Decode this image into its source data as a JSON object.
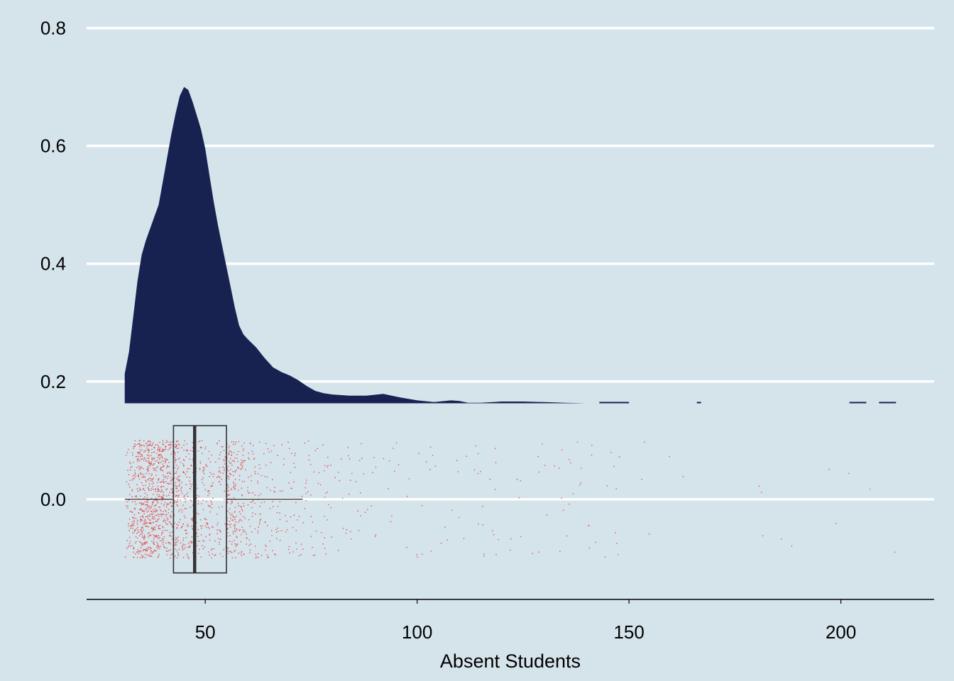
{
  "chart_data": {
    "type": "area",
    "title": "",
    "xlabel": "Absent Students",
    "ylabel": "",
    "xlim": [
      22,
      222
    ],
    "ylim": [
      -0.17,
      0.82
    ],
    "x_ticks": [
      {
        "value": 50,
        "label": "50"
      },
      {
        "value": 100,
        "label": "100"
      },
      {
        "value": 150,
        "label": "150"
      },
      {
        "value": 200,
        "label": "200"
      }
    ],
    "y_ticks": [
      {
        "value": 0.0,
        "label": "0.0"
      },
      {
        "value": 0.2,
        "label": "0.2"
      },
      {
        "value": 0.4,
        "label": "0.4"
      },
      {
        "value": 0.6,
        "label": "0.6"
      },
      {
        "value": 0.8,
        "label": "0.8"
      }
    ],
    "grid": "horizontal major",
    "colors": {
      "background": "#d5e4eb",
      "grid": "#ffffff",
      "density_fill": "#172251",
      "points": "#e04040",
      "box": "#333333"
    },
    "density": {
      "baseline": 0.163,
      "x": [
        31,
        32,
        33,
        34,
        35,
        36,
        37,
        38,
        39,
        40,
        41,
        42,
        43,
        44,
        45,
        46,
        47,
        48,
        49,
        50,
        51,
        52,
        53,
        54,
        55,
        56,
        57,
        58,
        59,
        60,
        62,
        64,
        66,
        68,
        70,
        72,
        74,
        76,
        78,
        80,
        84,
        88,
        92,
        96,
        100,
        104,
        108,
        110,
        112,
        115,
        120,
        125,
        130,
        135,
        140,
        142
      ],
      "y": [
        0.213,
        0.25,
        0.31,
        0.37,
        0.415,
        0.44,
        0.46,
        0.48,
        0.5,
        0.54,
        0.58,
        0.62,
        0.655,
        0.685,
        0.7,
        0.695,
        0.675,
        0.652,
        0.628,
        0.595,
        0.55,
        0.505,
        0.465,
        0.43,
        0.395,
        0.36,
        0.325,
        0.295,
        0.28,
        0.272,
        0.258,
        0.24,
        0.224,
        0.216,
        0.21,
        0.202,
        0.192,
        0.184,
        0.18,
        0.178,
        0.176,
        0.176,
        0.179,
        0.173,
        0.168,
        0.165,
        0.168,
        0.167,
        0.164,
        0.164,
        0.166,
        0.166,
        0.165,
        0.164,
        0.163,
        0.163
      ],
      "segments": [
        {
          "x": [
            143,
            150
          ]
        },
        {
          "x": [
            166,
            167
          ]
        },
        {
          "x": [
            202,
            206
          ]
        },
        {
          "x": [
            209,
            213
          ]
        }
      ]
    },
    "boxplot": {
      "min": 31,
      "q1": 42.5,
      "median": 47.5,
      "q3": 55,
      "whisker_high": 73,
      "y_center": 0.0,
      "half_width": 0.125
    },
    "jitter_points": {
      "n": 1800,
      "y_range": [
        -0.1,
        0.1
      ],
      "description_min": 31,
      "description_max": 214
    }
  }
}
